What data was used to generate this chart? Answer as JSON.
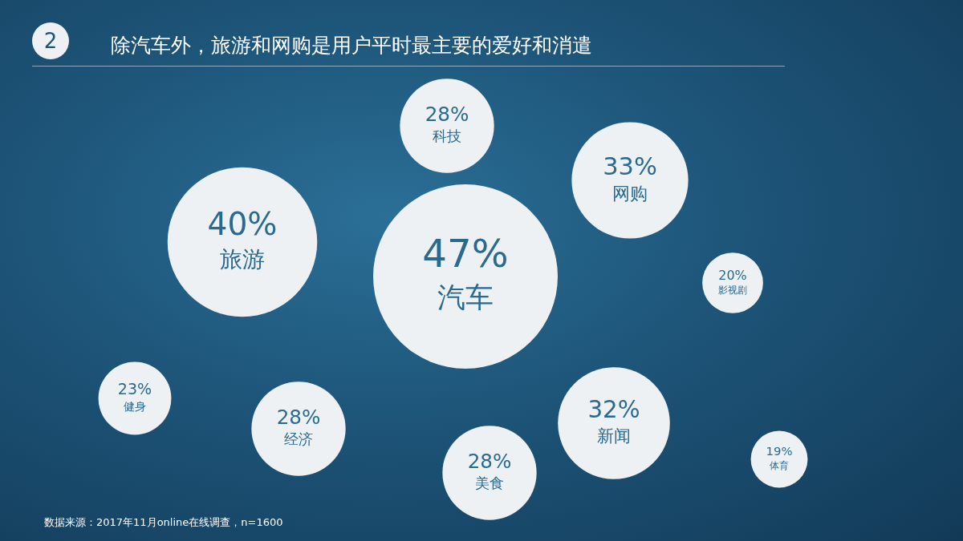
{
  "chart_data": {
    "type": "other",
    "title": "除汽车外，旅游和网购是用户平时最主要的爱好和消遣",
    "categories": [
      "汽车",
      "旅游",
      "科技",
      "网购",
      "影视剧",
      "健身",
      "经济",
      "美食",
      "新闻",
      "体育"
    ],
    "values": [
      47,
      40,
      28,
      33,
      20,
      23,
      28,
      28,
      32,
      19
    ],
    "value_labels": [
      "47%",
      "40%",
      "28%",
      "33%",
      "20%",
      "23%",
      "28%",
      "28%",
      "32%",
      "19%"
    ],
    "color": "#eef1f4",
    "annotations": [
      "2",
      "数据来源：2017年11月online在线调查，n=1600"
    ]
  }
}
